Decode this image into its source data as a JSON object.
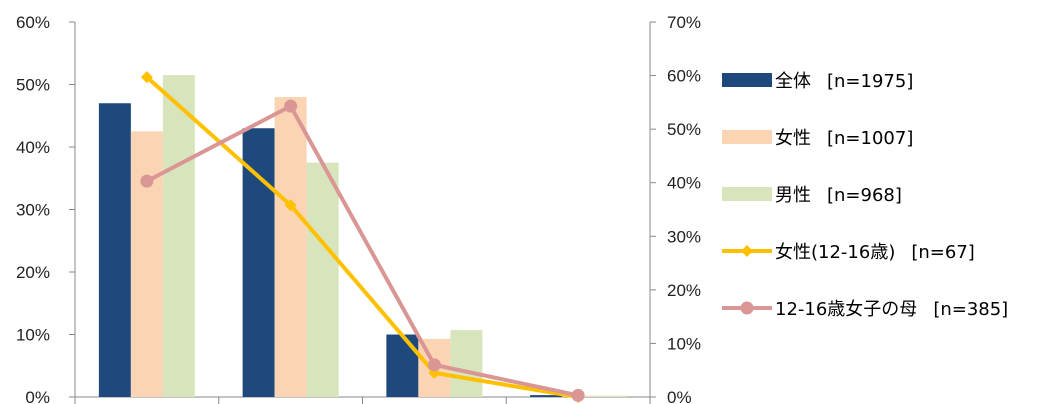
{
  "chart_data": {
    "type": "bar",
    "categories": [
      "",
      "",
      "",
      ""
    ],
    "series": [
      {
        "name": "全体",
        "n_label": "[n=1975]",
        "kind": "bar",
        "axis": "left",
        "color": "#1F497D",
        "values": [
          47,
          43,
          10,
          0.3
        ]
      },
      {
        "name": "女性",
        "n_label": "[n=1007]",
        "kind": "bar",
        "axis": "left",
        "color": "#FBD4B4",
        "values": [
          42.5,
          48,
          9.3,
          0.2
        ]
      },
      {
        "name": "男性",
        "n_label": "[n=968]",
        "kind": "bar",
        "axis": "left",
        "color": "#D7E4BC",
        "values": [
          51.5,
          37.5,
          10.7,
          0.2
        ]
      },
      {
        "name": "女性(12-16歳)",
        "n_label": "[n=67]",
        "kind": "line",
        "axis": "right",
        "color": "#FFC000",
        "marker": "diamond",
        "values": [
          59.7,
          35.8,
          4.5,
          0
        ]
      },
      {
        "name": "12-16歳女子の母",
        "n_label": "[n=385]",
        "kind": "line",
        "axis": "right",
        "color": "#D99694",
        "marker": "circle",
        "values": [
          40.3,
          54.3,
          6,
          0.3
        ]
      }
    ],
    "y_left": {
      "min": 0,
      "max": 60,
      "ticks": [
        "0%",
        "10%",
        "20%",
        "30%",
        "40%",
        "50%",
        "60%"
      ]
    },
    "y_right": {
      "min": 0,
      "max": 70,
      "ticks": [
        "0%",
        "10%",
        "20%",
        "30%",
        "40%",
        "50%",
        "60%",
        "70%"
      ]
    },
    "grid": false,
    "legend_position": "right"
  }
}
